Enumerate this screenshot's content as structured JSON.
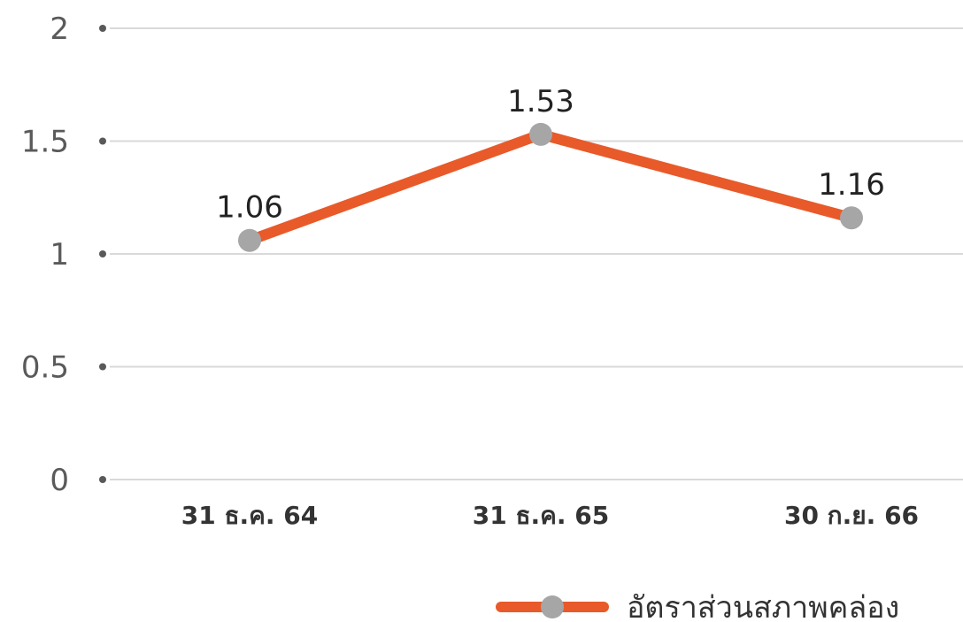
{
  "colors": {
    "line": "#E85A2A",
    "marker": "#A6A6A6",
    "grid": "#D9D9D9",
    "tick_dot": "#595959"
  },
  "chart_data": {
    "type": "line",
    "title": "",
    "xlabel": "",
    "ylabel": "",
    "categories": [
      "31 ธ.ค. 64",
      "31 ธ.ค. 65",
      "30 ก.ย. 66"
    ],
    "ylim": [
      0,
      2
    ],
    "yticks": [
      0,
      0.5,
      1,
      1.5,
      2
    ],
    "ytick_labels": [
      "0",
      "0.5",
      "1",
      "1.5",
      "2"
    ],
    "grid": true,
    "legend_position": "bottom-right",
    "series": [
      {
        "name": "อัตราส่วนสภาพคล่อง",
        "values": [
          1.06,
          1.53,
          1.16
        ],
        "data_labels": [
          "1.06",
          "1.53",
          "1.16"
        ]
      }
    ]
  }
}
